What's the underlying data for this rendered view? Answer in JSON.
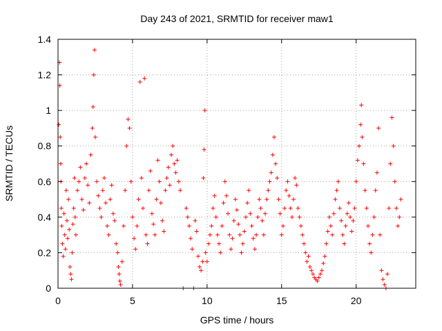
{
  "chart_data": {
    "type": "scatter",
    "title": "Day 243 of 2021, SRMTID for receiver maw1",
    "xlabel": "GPS time / hours",
    "ylabel": "SRMTID / TECUs",
    "xlim": [
      0,
      24
    ],
    "ylim": [
      0,
      1.4
    ],
    "xticks": [
      0,
      5,
      10,
      15,
      20
    ],
    "yticks": [
      0,
      0.2,
      0.4,
      0.6,
      0.8,
      1,
      1.2,
      1.4
    ],
    "xtick_labels": [
      "0",
      "5",
      "10",
      "15",
      "20"
    ],
    "ytick_labels": [
      "0",
      "0.2",
      "0.4",
      "0.6",
      "0.8",
      "1",
      "1.2",
      "1.4"
    ],
    "grid": true,
    "marker": "+",
    "color": "#ff0000",
    "series": [
      {
        "name": "SRMTID",
        "points": [
          [
            0.05,
            0.92
          ],
          [
            0.1,
            1.27
          ],
          [
            0.12,
            1.14
          ],
          [
            0.15,
            0.85
          ],
          [
            0.18,
            0.7
          ],
          [
            0.2,
            0.6
          ],
          [
            0.22,
            0.45
          ],
          [
            0.25,
            0.35
          ],
          [
            0.3,
            0.25
          ],
          [
            0.35,
            0.18
          ],
          [
            0.4,
            0.42
          ],
          [
            0.45,
            0.3
          ],
          [
            0.5,
            0.22
          ],
          [
            0.55,
            0.55
          ],
          [
            0.6,
            0.38
          ],
          [
            0.65,
            0.28
          ],
          [
            0.7,
            0.5
          ],
          [
            0.75,
            0.33
          ],
          [
            0.8,
            0.12
          ],
          [
            0.85,
            0.08
          ],
          [
            0.9,
            0.05
          ],
          [
            0.95,
            0.2
          ],
          [
            1.0,
            0.36
          ],
          [
            1.05,
            0.45
          ],
          [
            1.1,
            0.62
          ],
          [
            1.15,
            0.4
          ],
          [
            1.2,
            0.3
          ],
          [
            1.3,
            0.55
          ],
          [
            1.4,
            0.6
          ],
          [
            1.5,
            0.68
          ],
          [
            1.6,
            0.5
          ],
          [
            1.7,
            0.44
          ],
          [
            1.8,
            0.62
          ],
          [
            1.9,
            0.7
          ],
          [
            2.0,
            0.58
          ],
          [
            2.1,
            0.48
          ],
          [
            2.2,
            0.75
          ],
          [
            2.3,
            0.9
          ],
          [
            2.35,
            1.02
          ],
          [
            2.4,
            1.2
          ],
          [
            2.45,
            1.34
          ],
          [
            2.5,
            0.85
          ],
          [
            2.6,
            0.6
          ],
          [
            2.7,
            0.52
          ],
          [
            2.8,
            0.45
          ],
          [
            2.9,
            0.4
          ],
          [
            3.0,
            0.55
          ],
          [
            3.1,
            0.62
          ],
          [
            3.2,
            0.48
          ],
          [
            3.3,
            0.35
          ],
          [
            3.4,
            0.3
          ],
          [
            3.5,
            0.5
          ],
          [
            3.6,
            0.58
          ],
          [
            3.7,
            0.42
          ],
          [
            3.8,
            0.38
          ],
          [
            3.9,
            0.25
          ],
          [
            4.0,
            0.2
          ],
          [
            4.05,
            0.12
          ],
          [
            4.1,
            0.08
          ],
          [
            4.15,
            0.04
          ],
          [
            4.2,
            0.02
          ],
          [
            4.3,
            0.15
          ],
          [
            4.4,
            0.35
          ],
          [
            4.5,
            0.55
          ],
          [
            4.6,
            0.8
          ],
          [
            4.7,
            0.95
          ],
          [
            4.8,
            0.9
          ],
          [
            4.9,
            0.6
          ],
          [
            5.0,
            0.4
          ],
          [
            5.1,
            0.28
          ],
          [
            5.2,
            0.22
          ],
          [
            5.3,
            0.35
          ],
          [
            5.4,
            0.5
          ],
          [
            5.5,
            1.16
          ],
          [
            5.6,
            0.62
          ],
          [
            5.7,
            0.45
          ],
          [
            5.8,
            1.18
          ],
          [
            5.9,
            0.3
          ],
          [
            6.0,
            0.25
          ],
          [
            6.1,
            0.55
          ],
          [
            6.2,
            0.66
          ],
          [
            6.3,
            0.42
          ],
          [
            6.4,
            0.36
          ],
          [
            6.5,
            0.3
          ],
          [
            6.6,
            0.5
          ],
          [
            6.7,
            0.72
          ],
          [
            6.8,
            0.6
          ],
          [
            6.9,
            0.48
          ],
          [
            7.0,
            0.38
          ],
          [
            7.1,
            0.32
          ],
          [
            7.2,
            0.55
          ],
          [
            7.3,
            0.62
          ],
          [
            7.4,
            0.68
          ],
          [
            7.5,
            0.58
          ],
          [
            7.6,
            0.75
          ],
          [
            7.7,
            0.8
          ],
          [
            7.8,
            0.7
          ],
          [
            7.9,
            0.65
          ],
          [
            8.0,
            0.72
          ],
          [
            8.1,
            0.6
          ],
          [
            8.2,
            0.55
          ],
          [
            8.4,
            0.0
          ],
          [
            8.6,
            0.45
          ],
          [
            8.7,
            0.4
          ],
          [
            8.8,
            0.35
          ],
          [
            8.9,
            0.28
          ],
          [
            9.0,
            0.22
          ],
          [
            9.1,
            0.0
          ],
          [
            9.2,
            0.38
          ],
          [
            9.3,
            0.32
          ],
          [
            9.4,
            0.18
          ],
          [
            9.5,
            0.12
          ],
          [
            9.6,
            0.1
          ],
          [
            9.7,
            0.15
          ],
          [
            9.75,
            0.62
          ],
          [
            9.8,
            0.78
          ],
          [
            9.85,
            1.0
          ],
          [
            9.9,
            0.2
          ],
          [
            10.0,
            0.15
          ],
          [
            10.1,
            0.25
          ],
          [
            10.2,
            0.3
          ],
          [
            10.3,
            0.35
          ],
          [
            10.4,
            0.45
          ],
          [
            10.5,
            0.52
          ],
          [
            10.6,
            0.4
          ],
          [
            10.7,
            0.3
          ],
          [
            10.8,
            0.25
          ],
          [
            10.9,
            0.2
          ],
          [
            11.0,
            0.35
          ],
          [
            11.1,
            0.48
          ],
          [
            11.2,
            0.6
          ],
          [
            11.3,
            0.52
          ],
          [
            11.4,
            0.42
          ],
          [
            11.5,
            0.3
          ],
          [
            11.6,
            0.22
          ],
          [
            11.7,
            0.28
          ],
          [
            11.8,
            0.38
          ],
          [
            11.9,
            0.5
          ],
          [
            12.0,
            0.44
          ],
          [
            12.1,
            0.36
          ],
          [
            12.2,
            0.3
          ],
          [
            12.3,
            0.2
          ],
          [
            12.4,
            0.25
          ],
          [
            12.5,
            0.32
          ],
          [
            12.6,
            0.4
          ],
          [
            12.7,
            0.48
          ],
          [
            12.8,
            0.55
          ],
          [
            12.9,
            0.42
          ],
          [
            13.0,
            0.35
          ],
          [
            13.1,
            0.28
          ],
          [
            13.2,
            0.22
          ],
          [
            13.3,
            0.3
          ],
          [
            13.4,
            0.4
          ],
          [
            13.5,
            0.5
          ],
          [
            13.6,
            0.45
          ],
          [
            13.7,
            0.38
          ],
          [
            13.8,
            0.3
          ],
          [
            13.9,
            0.42
          ],
          [
            14.0,
            0.5
          ],
          [
            14.1,
            0.55
          ],
          [
            14.2,
            0.6
          ],
          [
            14.3,
            0.65
          ],
          [
            14.4,
            0.75
          ],
          [
            14.5,
            0.85
          ],
          [
            14.6,
            0.7
          ],
          [
            14.7,
            0.62
          ],
          [
            14.8,
            0.5
          ],
          [
            14.9,
            0.42
          ],
          [
            15.0,
            0.3
          ],
          [
            15.1,
            0.35
          ],
          [
            15.2,
            0.45
          ],
          [
            15.3,
            0.55
          ],
          [
            15.4,
            0.6
          ],
          [
            15.5,
            0.52
          ],
          [
            15.6,
            0.45
          ],
          [
            15.7,
            0.4
          ],
          [
            15.8,
            0.5
          ],
          [
            15.9,
            0.62
          ],
          [
            16.0,
            0.58
          ],
          [
            16.1,
            0.45
          ],
          [
            16.2,
            0.4
          ],
          [
            16.3,
            0.35
          ],
          [
            16.4,
            0.3
          ],
          [
            16.5,
            0.25
          ],
          [
            16.6,
            0.2
          ],
          [
            16.7,
            0.15
          ],
          [
            16.8,
            0.18
          ],
          [
            16.9,
            0.12
          ],
          [
            17.0,
            0.1
          ],
          [
            17.1,
            0.08
          ],
          [
            17.2,
            0.06
          ],
          [
            17.3,
            0.05
          ],
          [
            17.4,
            0.04
          ],
          [
            17.5,
            0.06
          ],
          [
            17.6,
            0.08
          ],
          [
            17.7,
            0.1
          ],
          [
            17.8,
            0.14
          ],
          [
            17.9,
            0.18
          ],
          [
            18.0,
            0.25
          ],
          [
            18.1,
            0.32
          ],
          [
            18.2,
            0.4
          ],
          [
            18.3,
            0.35
          ],
          [
            18.4,
            0.3
          ],
          [
            18.5,
            0.42
          ],
          [
            18.6,
            0.5
          ],
          [
            18.7,
            0.55
          ],
          [
            18.8,
            0.6
          ],
          [
            18.9,
            0.45
          ],
          [
            19.0,
            0.38
          ],
          [
            19.1,
            0.3
          ],
          [
            19.2,
            0.25
          ],
          [
            19.3,
            0.35
          ],
          [
            19.4,
            0.42
          ],
          [
            19.5,
            0.48
          ],
          [
            19.6,
            0.4
          ],
          [
            19.7,
            0.32
          ],
          [
            19.8,
            0.38
          ],
          [
            19.9,
            0.45
          ],
          [
            20.0,
            0.6
          ],
          [
            20.1,
            0.72
          ],
          [
            20.2,
            0.8
          ],
          [
            20.3,
            0.92
          ],
          [
            20.35,
            1.03
          ],
          [
            20.4,
            0.85
          ],
          [
            20.5,
            0.7
          ],
          [
            20.6,
            0.55
          ],
          [
            20.7,
            0.45
          ],
          [
            20.8,
            0.35
          ],
          [
            20.9,
            0.25
          ],
          [
            21.0,
            0.2
          ],
          [
            21.1,
            0.3
          ],
          [
            21.2,
            0.4
          ],
          [
            21.3,
            0.55
          ],
          [
            21.4,
            0.65
          ],
          [
            21.5,
            0.9
          ],
          [
            21.6,
            0.3
          ],
          [
            21.7,
            0.1
          ],
          [
            21.8,
            0.05
          ],
          [
            21.9,
            0.02
          ],
          [
            22.0,
            0.0
          ],
          [
            22.1,
            0.08
          ],
          [
            22.2,
            0.45
          ],
          [
            22.3,
            0.7
          ],
          [
            22.4,
            0.96
          ],
          [
            22.5,
            0.8
          ],
          [
            22.6,
            0.6
          ],
          [
            22.7,
            0.45
          ],
          [
            22.8,
            0.35
          ],
          [
            22.9,
            0.4
          ],
          [
            23.0,
            0.5
          ]
        ]
      }
    ]
  }
}
